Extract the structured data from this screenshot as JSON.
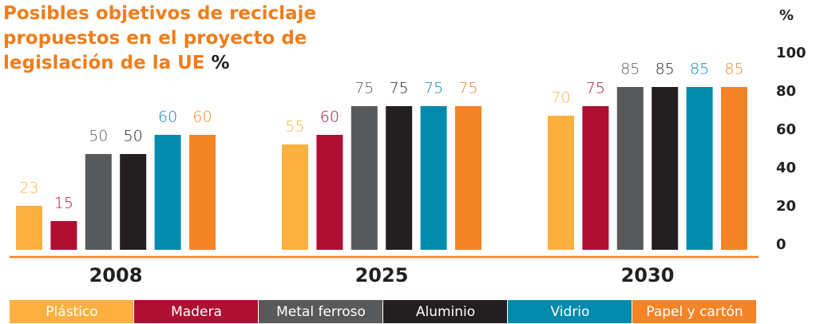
{
  "chart_data": {
    "type": "bar",
    "title": "Posibles objetivos de reciclaje propuestos en el proyecto de legislación de la UE",
    "title_unit": "%",
    "y_label": "%",
    "categories": [
      "2008",
      "2025",
      "2030"
    ],
    "series": [
      {
        "name": "Plástico",
        "color": "#fbb040",
        "values": [
          23,
          55,
          70
        ]
      },
      {
        "name": "Madera",
        "color": "#ae0f32",
        "values": [
          15,
          60,
          75
        ]
      },
      {
        "name": "Metal ferroso",
        "color": "#58595b",
        "values": [
          50,
          75,
          85
        ]
      },
      {
        "name": "Aluminio",
        "color": "#231f20",
        "values": [
          50,
          75,
          85
        ]
      },
      {
        "name": "Vidrio",
        "color": "#008bad",
        "values": [
          60,
          75,
          85
        ]
      },
      {
        "name": "Papel y cartón",
        "color": "#f58426",
        "values": [
          60,
          75,
          85
        ]
      }
    ],
    "ylim": [
      0,
      100
    ],
    "yticks": [
      0,
      20,
      40,
      60,
      80,
      100
    ],
    "grid": false
  }
}
